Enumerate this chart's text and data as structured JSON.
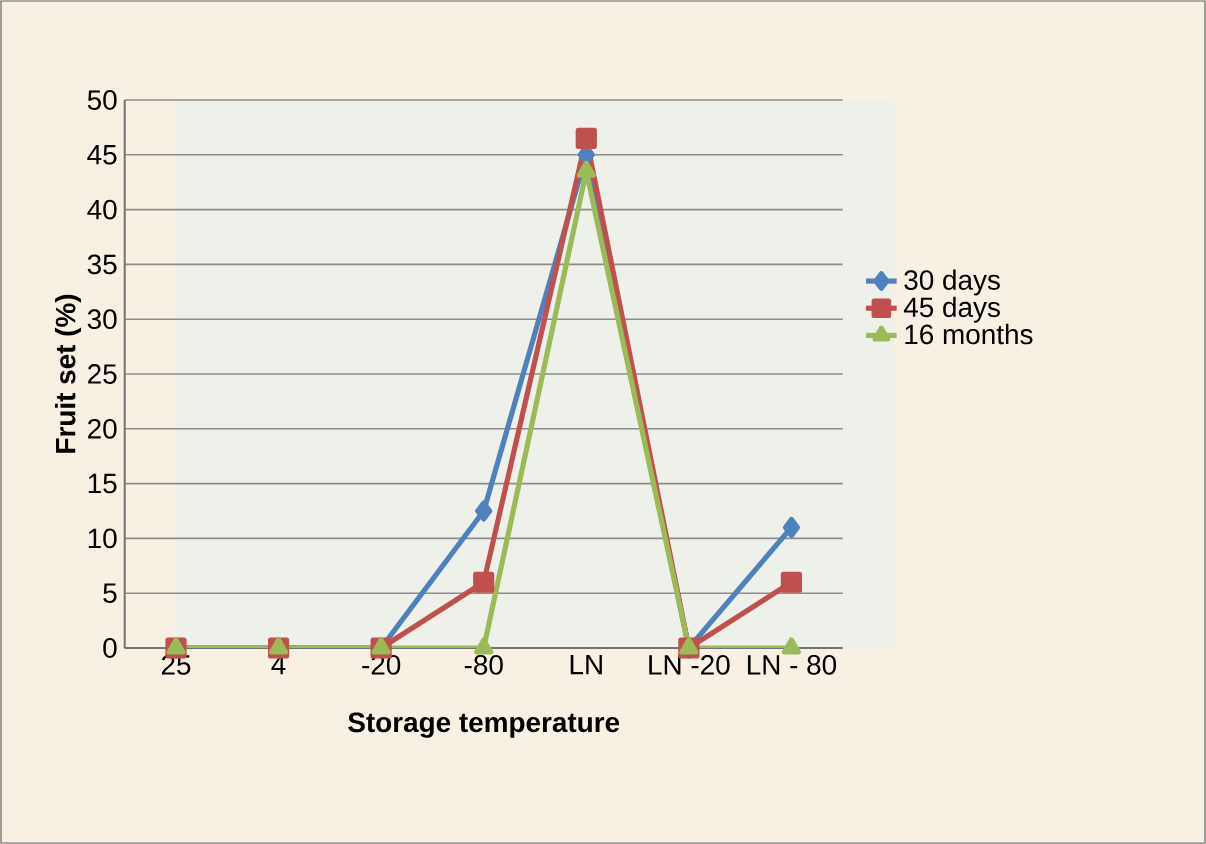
{
  "chart_data": {
    "type": "line",
    "xlabel": "Storage temperature",
    "ylabel": "Fruit set (%)",
    "categories": [
      "25",
      "4",
      "-20",
      "-80",
      "LN",
      "LN -20",
      "LN - 80"
    ],
    "series": [
      {
        "name": "30 days",
        "color": "#4f81bd",
        "marker": "diamond",
        "values": [
          0,
          0,
          0,
          12.5,
          45,
          0,
          11
        ]
      },
      {
        "name": "45 days",
        "color": "#c0504d",
        "marker": "square",
        "values": [
          0,
          0,
          0,
          6,
          46.5,
          0,
          6
        ]
      },
      {
        "name": "16 months",
        "color": "#9bbb59",
        "marker": "triangle",
        "values": [
          0,
          0,
          0,
          0,
          43.5,
          0,
          0
        ]
      }
    ],
    "ylim": [
      0,
      50
    ],
    "yticks": [
      0,
      5,
      10,
      15,
      20,
      25,
      30,
      35,
      40,
      45,
      50
    ],
    "grid": "y",
    "legend": "right",
    "line_style": "solid"
  }
}
